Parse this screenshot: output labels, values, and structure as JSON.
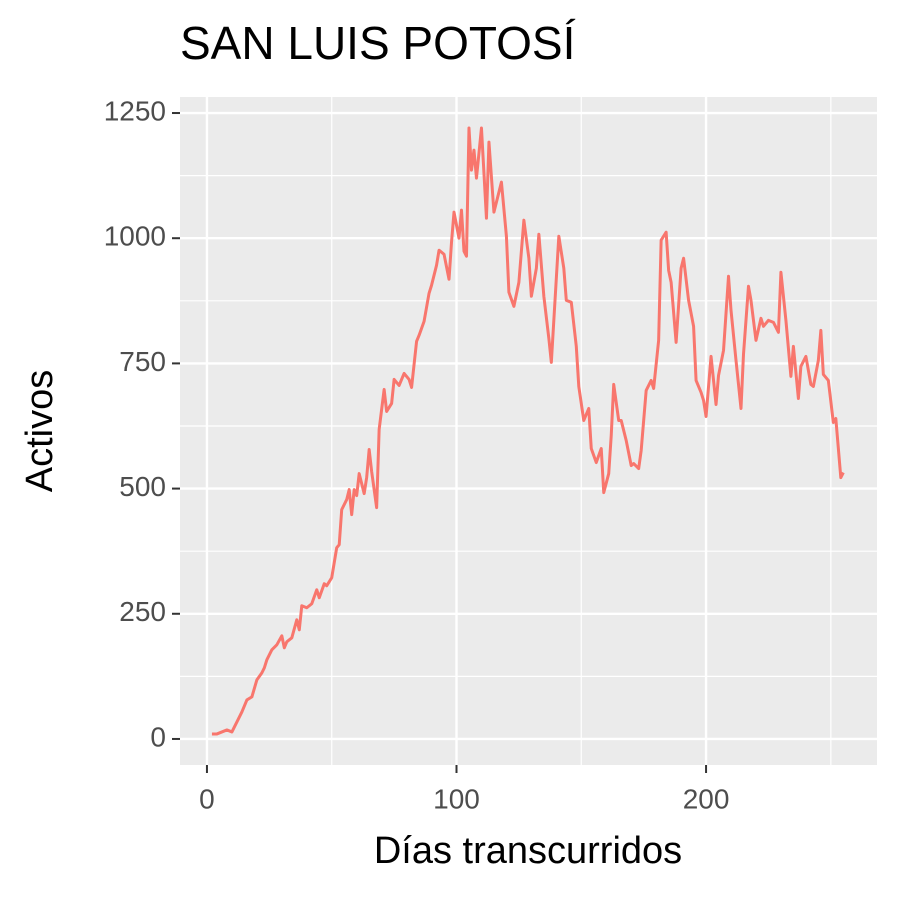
{
  "chart_data": {
    "type": "line",
    "title": "SAN LUIS POTOSÍ",
    "x_label": "Días transcurridos",
    "y_label": "Activos",
    "color": "#f8766d",
    "grid": true,
    "xlim": [
      -10.8,
      268.5
    ],
    "ylim": [
      -52,
      1282
    ],
    "xticks": [
      0,
      100,
      200
    ],
    "yticks": [
      0,
      250,
      500,
      750,
      1000,
      1250
    ],
    "xminor": [
      50,
      150,
      250
    ],
    "yminor": [
      125,
      375,
      625,
      875,
      1125
    ],
    "x": [
      2,
      4,
      6,
      8,
      10,
      12,
      14,
      16,
      18,
      20,
      22,
      23,
      24,
      26,
      28,
      30,
      31,
      32,
      34,
      36,
      37,
      38,
      40,
      42,
      44,
      45,
      47,
      48,
      50,
      52,
      53,
      54,
      56,
      57,
      58,
      59,
      60,
      61,
      63,
      64,
      65,
      66,
      68,
      69,
      71,
      72,
      74,
      75,
      77,
      79,
      81,
      82,
      84,
      85,
      87,
      89,
      90,
      92,
      93,
      95,
      97,
      98,
      99,
      101,
      102,
      103,
      104,
      105,
      106,
      107,
      108,
      110,
      112,
      113,
      115,
      117,
      118,
      120,
      121,
      123,
      125,
      127,
      129,
      130,
      132,
      133,
      135,
      137,
      138,
      139,
      141,
      143,
      144,
      146,
      148,
      149,
      151,
      153,
      154,
      156,
      158,
      159,
      161,
      162,
      163,
      165,
      166,
      168,
      170,
      171,
      173,
      174,
      176,
      178,
      179,
      181,
      182,
      184,
      185,
      186,
      188,
      190,
      191,
      193,
      195,
      196,
      198,
      199,
      200,
      202,
      204,
      205,
      207,
      209,
      210,
      212,
      214,
      215,
      217,
      218,
      220,
      222,
      223,
      225,
      227,
      229,
      230,
      232,
      234,
      235,
      237,
      238,
      240,
      242,
      243,
      245,
      246,
      247,
      249,
      251,
      252,
      254,
      255
    ],
    "values": [
      10,
      10,
      14,
      18,
      14,
      34,
      54,
      78,
      84,
      118,
      132,
      142,
      158,
      178,
      188,
      206,
      182,
      194,
      202,
      238,
      218,
      266,
      262,
      270,
      298,
      282,
      310,
      306,
      322,
      382,
      388,
      458,
      478,
      498,
      448,
      498,
      486,
      530,
      490,
      522,
      578,
      534,
      462,
      618,
      698,
      654,
      670,
      718,
      706,
      730,
      718,
      702,
      794,
      806,
      834,
      890,
      906,
      946,
      976,
      968,
      918,
      992,
      1052,
      1000,
      1056,
      974,
      964,
      1220,
      1136,
      1176,
      1120,
      1220,
      1040,
      1192,
      1052,
      1092,
      1112,
      1004,
      892,
      864,
      912,
      1036,
      960,
      884,
      940,
      1008,
      884,
      800,
      752,
      836,
      1004,
      940,
      876,
      872,
      784,
      704,
      636,
      660,
      580,
      552,
      580,
      492,
      530,
      606,
      708,
      636,
      636,
      596,
      546,
      550,
      540,
      576,
      696,
      716,
      700,
      796,
      996,
      1012,
      936,
      912,
      792,
      940,
      960,
      876,
      824,
      716,
      692,
      676,
      644,
      764,
      668,
      726,
      776,
      924,
      856,
      756,
      660,
      768,
      904,
      876,
      796,
      840,
      824,
      836,
      832,
      812,
      932,
      836,
      724,
      784,
      680,
      744,
      764,
      708,
      704,
      756,
      816,
      728,
      716,
      632,
      640,
      522,
      532
    ]
  }
}
